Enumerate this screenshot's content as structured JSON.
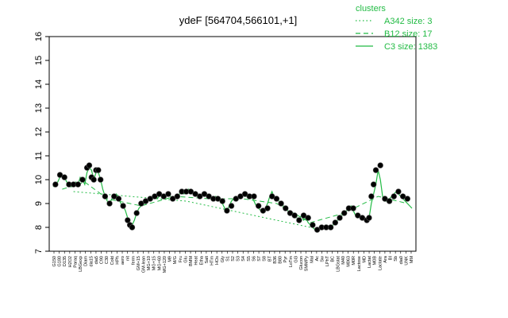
{
  "chart_data": {
    "type": "line",
    "title": "ydeF [564704,566101,+1]",
    "xlabel": "",
    "ylabel": "",
    "ylim": [
      7,
      16
    ],
    "yticks": [
      7,
      8,
      9,
      10,
      11,
      12,
      13,
      14,
      15,
      16
    ],
    "grid": false,
    "legend": {
      "title": "clusters",
      "placement": "top-right",
      "entries": [
        {
          "label": "A342 size: 3",
          "style": "dotted"
        },
        {
          "label": "B12 size: 17",
          "style": "dashed"
        },
        {
          "label": "C3 size: 1383",
          "style": "solid"
        }
      ]
    },
    "colors": {
      "series_line": "#22bb44",
      "points": "#000000"
    },
    "x_tick_labels": [
      "G150",
      "G180",
      "D135",
      "H2O2",
      "Paraq",
      "LBGexp",
      "Diam",
      "dia15",
      "dia5",
      "C90",
      "C30",
      "Cold",
      "HPh",
      "aero",
      "nit",
      "ferm",
      "GM+15",
      "GM-lean",
      "MG+10",
      "MG+15",
      "MG+60",
      "MG+120",
      "M9",
      "M/G",
      "Fru",
      "Glu",
      "BMM",
      "Heat",
      "Etha",
      "Salt",
      "HTm",
      "HOs",
      "Gly",
      "S1",
      "S2",
      "S3",
      "S4",
      "S5",
      "S6",
      "S7",
      "S8",
      "BT",
      "B36",
      "B80",
      "Pyr",
      "LoTm",
      "Gl3",
      "Glucon",
      "SMMPy",
      "Mal",
      "Ac",
      "Sw",
      "LPhT",
      "BC",
      "LBGstat",
      "M40",
      "M063",
      "M0R",
      "Lactose",
      "MD",
      "Lactat",
      "M0B",
      "Lactate",
      "Ara",
      "BI",
      "Sb",
      "dia0",
      "UNK",
      "MM"
    ],
    "series": [
      {
        "name": "C3 size: 1383",
        "x": [
          1,
          2,
          3,
          4,
          5,
          6,
          7,
          8,
          9,
          10,
          11,
          12,
          13,
          14,
          15,
          16,
          17,
          18,
          19,
          20,
          21,
          22,
          23,
          24,
          25,
          26,
          27,
          28,
          29,
          30,
          31,
          32,
          33,
          34,
          35,
          36,
          37,
          38,
          39,
          40,
          41,
          42,
          43,
          44,
          45,
          46,
          47,
          48,
          49,
          50,
          51,
          52,
          53,
          54,
          55,
          56,
          57,
          58,
          59,
          60,
          61,
          62,
          63,
          64,
          65,
          66,
          67,
          68,
          69,
          70,
          71,
          72,
          73,
          74,
          75,
          76,
          77,
          78,
          79,
          80,
          81,
          82,
          83,
          84,
          85,
          86,
          87,
          88,
          89,
          90,
          91,
          92,
          93,
          94,
          95,
          96,
          97,
          98,
          99,
          100,
          101,
          102,
          103,
          104,
          105,
          106,
          107,
          108,
          109,
          110,
          111,
          112,
          113,
          114,
          115,
          116,
          117,
          118,
          119,
          120,
          121,
          122,
          123,
          124,
          125,
          126,
          127,
          128,
          129,
          130,
          131,
          132,
          133,
          134,
          135,
          136,
          137,
          138,
          139,
          140,
          141,
          142,
          143,
          144,
          145,
          146,
          147,
          148,
          149,
          150,
          151,
          152,
          153,
          154,
          155,
          156,
          157,
          158,
          159,
          160
        ],
        "values": [
          9.7,
          9.8,
          9.9,
          10.1,
          10.2,
          10.1,
          9.9,
          9.8,
          9.7,
          9.8,
          9.9,
          9.8,
          10.1,
          10.0,
          9.8,
          10.3,
          10.5,
          10.4,
          10.0,
          10.3,
          10.3,
          10.0,
          9.6,
          9.3,
          9.1,
          9.0,
          9.2,
          9.3,
          9.4,
          9.2,
          9.0,
          8.9,
          8.7,
          8.4,
          8.2,
          8.1,
          8.3,
          8.6,
          8.8,
          8.9,
          9.0,
          9.0,
          9.1,
          9.2,
          9.2,
          9.3,
          9.2,
          9.3,
          9.4,
          9.3,
          9.3,
          9.4,
          9.3,
          9.2,
          9.3,
          9.3,
          9.4,
          9.5,
          9.4,
          9.5,
          9.6,
          9.5,
          9.4,
          9.5,
          9.4,
          9.3,
          9.3,
          9.4,
          9.3,
          9.3,
          9.2,
          9.2,
          9.3,
          9.2,
          9.1,
          9.0,
          8.8,
          8.7,
          8.9,
          9.1,
          9.2,
          9.2,
          9.3,
          9.3,
          9.4,
          9.3,
          9.3,
          9.2,
          9.3,
          9.1,
          8.9,
          8.8,
          8.7,
          8.6,
          8.8,
          9.0,
          9.3,
          9.5,
          9.2,
          9.2,
          9.1,
          9.0,
          8.9,
          8.8,
          8.7,
          8.6,
          8.5,
          8.5,
          8.4,
          8.3,
          8.5,
          8.3,
          8.4,
          8.2,
          8.1,
          8.0,
          7.9,
          7.8,
          7.9,
          8.0,
          8.0,
          8.1,
          8.0,
          8.0,
          8.1,
          8.2,
          8.3,
          8.4,
          8.5,
          8.6,
          8.7,
          8.8,
          8.9,
          8.7,
          8.5,
          8.4,
          8.5,
          8.4,
          8.4,
          8.3,
          8.4,
          9.0,
          9.4,
          9.8,
          10.4,
          10.0,
          9.3,
          9.1,
          9.1,
          9.2,
          9.3,
          9.4,
          9.5,
          9.4,
          9.3,
          9.2,
          9.1,
          9.0,
          8.9,
          8.8
        ]
      },
      {
        "name": "B12 size: 17",
        "x": [
          5,
          15,
          25,
          40,
          55,
          70,
          85,
          100,
          115,
          130,
          145,
          158
        ],
        "values": [
          9.6,
          9.9,
          9.2,
          8.9,
          9.3,
          9.2,
          9.2,
          9.0,
          8.2,
          8.6,
          9.3,
          9.0
        ]
      },
      {
        "name": "A342 size: 3",
        "x": [
          10,
          60,
          120
        ],
        "values": [
          9.5,
          9.1,
          7.9
        ]
      }
    ],
    "points": {
      "x": [
        2,
        4,
        6,
        8,
        10,
        12,
        14,
        16,
        17,
        18,
        19,
        20,
        21,
        22,
        24,
        26,
        28,
        30,
        32,
        34,
        35,
        36,
        38,
        40,
        42,
        44,
        46,
        48,
        50,
        52,
        54,
        56,
        58,
        60,
        62,
        64,
        66,
        68,
        70,
        72,
        74,
        76,
        78,
        80,
        82,
        84,
        86,
        88,
        90,
        92,
        94,
        96,
        98,
        100,
        102,
        104,
        106,
        108,
        110,
        112,
        114,
        116,
        118,
        120,
        122,
        124,
        126,
        128,
        130,
        132,
        134,
        136,
        138,
        140,
        141,
        142,
        143,
        144,
        146,
        148,
        150,
        152,
        154,
        156,
        158
      ],
      "values": [
        9.8,
        10.2,
        10.1,
        9.8,
        9.8,
        9.8,
        10.0,
        10.5,
        10.6,
        10.1,
        10.0,
        10.4,
        10.4,
        10.0,
        9.3,
        9.0,
        9.3,
        9.2,
        8.9,
        8.3,
        8.1,
        8.0,
        8.6,
        9.0,
        9.1,
        9.2,
        9.3,
        9.4,
        9.3,
        9.4,
        9.2,
        9.3,
        9.5,
        9.5,
        9.5,
        9.4,
        9.3,
        9.4,
        9.3,
        9.2,
        9.2,
        9.1,
        8.7,
        8.9,
        9.2,
        9.3,
        9.4,
        9.3,
        9.3,
        8.9,
        8.7,
        8.8,
        9.3,
        9.2,
        9.0,
        8.8,
        8.6,
        8.5,
        8.3,
        8.5,
        8.4,
        8.1,
        7.9,
        8.0,
        8.0,
        8.0,
        8.2,
        8.4,
        8.6,
        8.8,
        8.8,
        8.5,
        8.4,
        8.3,
        8.4,
        9.3,
        9.8,
        10.4,
        10.6,
        9.2,
        9.1,
        9.3,
        9.5,
        9.3,
        9.2
      ]
    }
  }
}
